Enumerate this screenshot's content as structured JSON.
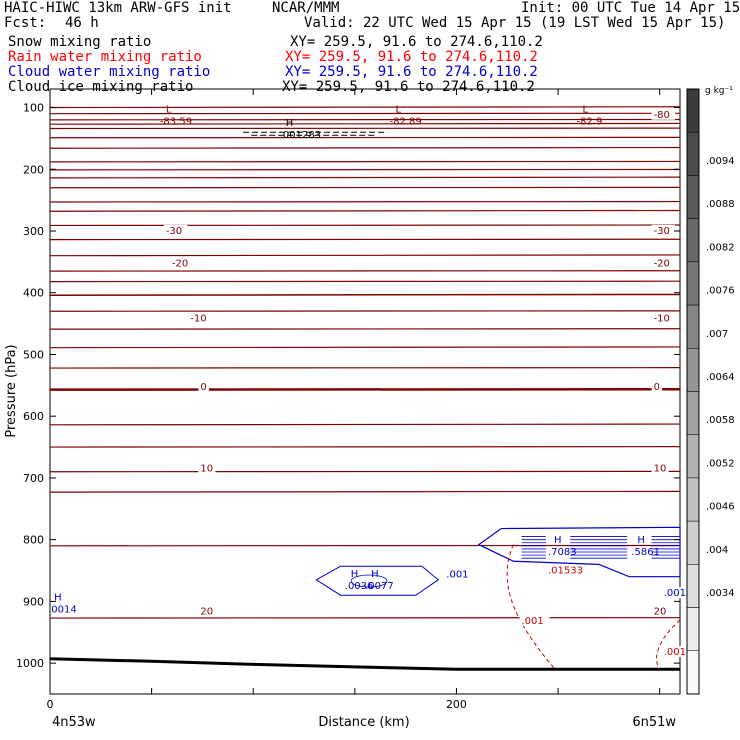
{
  "header": {
    "model": "HAIC-HIWC 13km ARW-GFS init",
    "org": "NCAR/MMM",
    "init": "Init: 00 UTC Tue 14 Apr 15",
    "fcst_label": "Fcst:",
    "fcst_value": "46 h",
    "valid": "Valid: 22 UTC Wed 15 Apr 15 (19 LST Wed 15 Apr 15)",
    "fields": [
      {
        "name": "Snow mixing ratio",
        "xy": "XY= 259.5, 91.6 to 274.6,110.2",
        "color": "#000000"
      },
      {
        "name": "Rain water mixing ratio",
        "xy": "XY= 259.5, 91.6 to 274.6,110.2",
        "color": "#ff0000"
      },
      {
        "name": "Cloud water mixing ratio",
        "xy": "XY= 259.5, 91.6 to 274.6,110.2",
        "color": "#0000cc"
      },
      {
        "name": "Cloud ice mixing ratio",
        "xy": "XY= 259.5, 91.6 to 274.6,110.2",
        "color": "#000000"
      }
    ]
  },
  "chart_data": {
    "type": "cross-section contour with shaded colorbar",
    "ylabel": "Pressure (hPa)",
    "xlabel": "Distance (km)",
    "x_ticks": [
      0,
      200
    ],
    "x_range_km": [
      0,
      310
    ],
    "y_ticks": [
      100,
      200,
      300,
      400,
      500,
      600,
      700,
      800,
      900,
      1000
    ],
    "y_range_hpa": [
      70,
      1050
    ],
    "x_endpoints": {
      "left": "4n53w",
      "right": "6n51w"
    },
    "colorbar": {
      "unit": "g kg⁻¹",
      "labels": [
        ".0094",
        ".0088",
        ".0082",
        ".0076",
        ".007",
        ".0064",
        ".0058",
        ".0052",
        ".0046",
        ".004",
        ".0034"
      ]
    },
    "temperature_labels": [
      "-83.59",
      "-82.89",
      "-82.9",
      "-80",
      "-30",
      "-20",
      "-10",
      "0",
      "10",
      "20"
    ],
    "extrema": [
      {
        "kind": "L",
        "value": "-83.59",
        "x_km": 57,
        "p": 118,
        "color": "#800000"
      },
      {
        "kind": "L",
        "value": "-82.89",
        "x_km": 170,
        "p": 118,
        "color": "#800000"
      },
      {
        "kind": "L",
        "value": "-82.9",
        "x_km": 262,
        "p": 118,
        "color": "#800000"
      },
      {
        "kind": "H",
        "value": ".001283",
        "x_km": 116,
        "p": 140,
        "color": "#000000"
      },
      {
        "kind": "H",
        "value": ".7083",
        "x_km": 248,
        "p": 815,
        "color": "#0000cc"
      },
      {
        "kind": "H",
        "value": ".5861",
        "x_km": 289,
        "p": 815,
        "color": "#0000cc"
      },
      {
        "kind": "H",
        "value": ".0077",
        "x_km": 158,
        "p": 870,
        "color": "#0000cc"
      },
      {
        "kind": "H",
        "value": ".0036",
        "x_km": 148,
        "p": 870,
        "color": "#0000cc"
      },
      {
        "kind": "H",
        "value": ".0014",
        "x_km": 2,
        "p": 908,
        "color": "#0000cc"
      },
      {
        "kind": "",
        "value": ".01533",
        "x_km": 248,
        "p": 845,
        "color": "#cc0000"
      }
    ],
    "contour_labels": [
      {
        "text": "-80",
        "x_km": 297,
        "p": 115,
        "color": "#800000"
      },
      {
        "text": "-30",
        "x_km": 57,
        "p": 303,
        "color": "#800000"
      },
      {
        "text": "-30",
        "x_km": 297,
        "p": 303,
        "color": "#800000"
      },
      {
        "text": "-20",
        "x_km": 60,
        "p": 356,
        "color": "#800000"
      },
      {
        "text": "-20",
        "x_km": 297,
        "p": 356,
        "color": "#800000"
      },
      {
        "text": "-10",
        "x_km": 69,
        "p": 445,
        "color": "#800000"
      },
      {
        "text": "-10",
        "x_km": 297,
        "p": 445,
        "color": "#800000"
      },
      {
        "text": "0",
        "x_km": 74,
        "p": 556,
        "color": "#800000"
      },
      {
        "text": "0",
        "x_km": 297,
        "p": 556,
        "color": "#800000"
      },
      {
        "text": "10",
        "x_km": 74,
        "p": 688,
        "color": "#800000"
      },
      {
        "text": "10",
        "x_km": 297,
        "p": 688,
        "color": "#800000"
      },
      {
        "text": "20",
        "x_km": 74,
        "p": 920,
        "color": "#800000"
      },
      {
        "text": "20",
        "x_km": 297,
        "p": 920,
        "color": "#800000"
      },
      {
        "text": ".001",
        "x_km": 195,
        "p": 860,
        "color": "#0000cc"
      },
      {
        "text": ".001",
        "x_km": 302,
        "p": 890,
        "color": "#0000cc"
      },
      {
        "text": ".001",
        "x_km": 232,
        "p": 935,
        "color": "#cc0000"
      },
      {
        "text": ".001",
        "x_km": 302,
        "p": 985,
        "color": "#cc0000"
      }
    ],
    "isotherm_levels_hpa": [
      100,
      110,
      120,
      127,
      134,
      149,
      166,
      188,
      201,
      214,
      230,
      253,
      268,
      291,
      314,
      340,
      365,
      382,
      404,
      430,
      459,
      489,
      522,
      557,
      614,
      650,
      690,
      723,
      810,
      927
    ],
    "surface_line": [
      [
        0,
        993
      ],
      [
        50,
        997
      ],
      [
        100,
        1002
      ],
      [
        150,
        1006
      ],
      [
        200,
        1010
      ],
      [
        250,
        1010
      ],
      [
        310,
        1010
      ]
    ]
  }
}
